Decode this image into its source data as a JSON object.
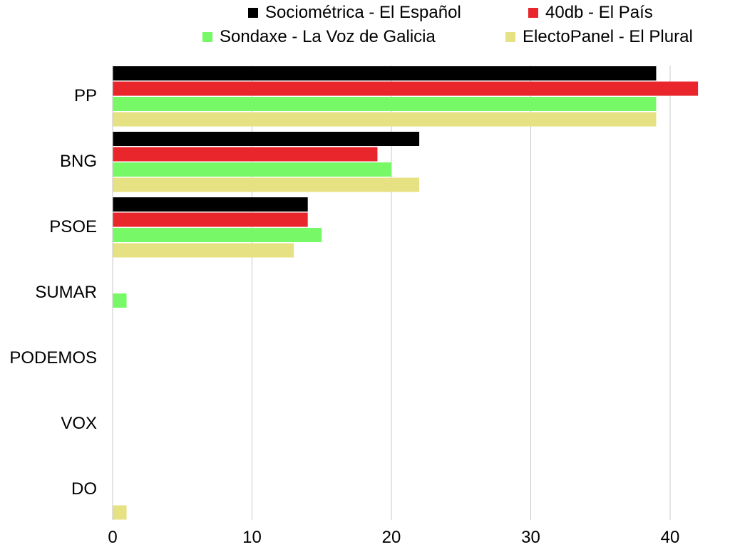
{
  "chart_data": {
    "type": "bar",
    "orientation": "horizontal",
    "categories": [
      "PP",
      "BNG",
      "PSOE",
      "SUMAR",
      "PODEMOS",
      "VOX",
      "DO"
    ],
    "series": [
      {
        "name": "Sociométrica - El Español",
        "color": "#000000",
        "values": [
          39,
          22,
          14,
          0,
          0,
          0,
          0
        ]
      },
      {
        "name": "40db - El País",
        "color": "#e8262b",
        "values": [
          42,
          19,
          14,
          0,
          0,
          0,
          0
        ]
      },
      {
        "name": "Sondaxe - La Voz de Galicia",
        "color": "#77f967",
        "values": [
          39,
          20,
          15,
          1,
          0,
          0,
          0
        ]
      },
      {
        "name": "ElectoPanel - El Plural",
        "color": "#e6e182",
        "values": [
          39,
          22,
          13,
          0,
          0,
          0,
          1
        ]
      }
    ],
    "xlim": [
      0,
      43
    ],
    "xticks": [
      "0",
      "10",
      "20",
      "30",
      "40"
    ],
    "xtick_values": [
      0,
      10,
      20,
      30,
      40
    ],
    "grid": true,
    "legend_position": "top"
  }
}
